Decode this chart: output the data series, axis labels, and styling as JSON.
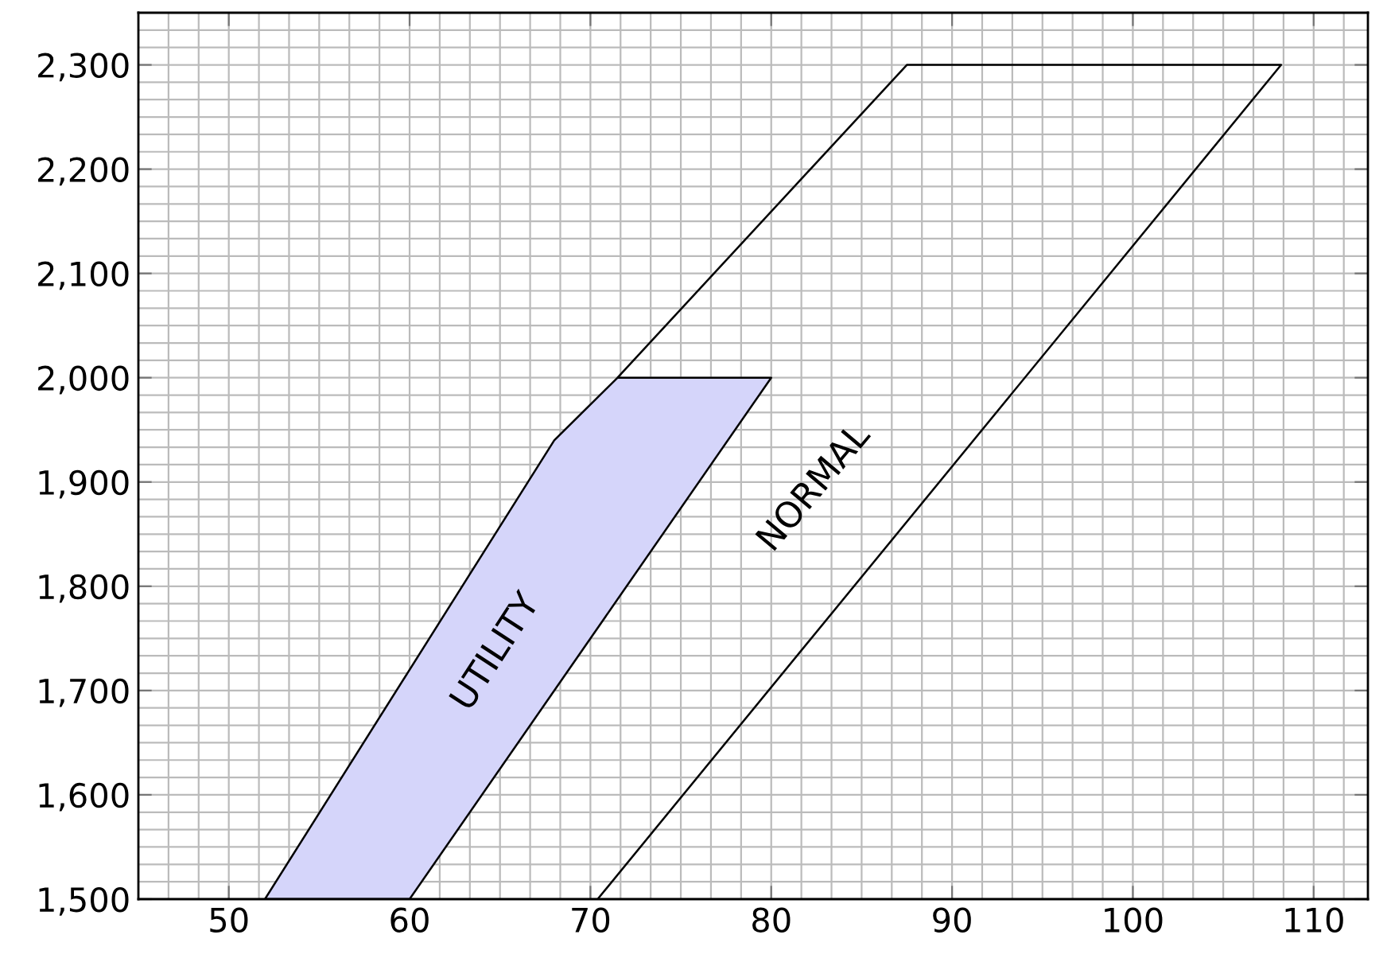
{
  "chart_data": {
    "type": "line",
    "series": [
      {
        "type": "area",
        "color": "#d5d5fa",
        "x": [
          52,
          68,
          71.5,
          80,
          60
        ],
        "values": [
          1500,
          1940,
          2000,
          2000,
          1500
        ]
      },
      {
        "color": "#000000",
        "x": [
          70.4,
          108.2,
          87.5,
          71.5,
          80,
          60,
          52,
          68,
          71.5
        ],
        "values": [
          1500,
          2300,
          2300,
          2000,
          2000,
          1500,
          1500,
          1940,
          2000
        ]
      }
    ],
    "annotations": [
      "UTILITY",
      "NORMAL"
    ],
    "xlim": [
      45,
      113
    ],
    "xticks": [
      50,
      60,
      70,
      80,
      90,
      100,
      110
    ],
    "ylim": [
      1500,
      2350
    ],
    "yticks": [
      {
        "value": 1500,
        "label": "1,500"
      },
      {
        "value": 1600,
        "label": "1,600"
      },
      {
        "value": 1700,
        "label": "1,700"
      },
      {
        "value": 1800,
        "label": "1,800"
      },
      {
        "value": 1900,
        "label": "1,900"
      },
      {
        "value": 2000,
        "label": "2,000"
      },
      {
        "value": 2100,
        "label": "2,100"
      },
      {
        "value": 2200,
        "label": "2,200"
      },
      {
        "value": 2300,
        "label": "2,300"
      }
    ],
    "grid": true
  }
}
